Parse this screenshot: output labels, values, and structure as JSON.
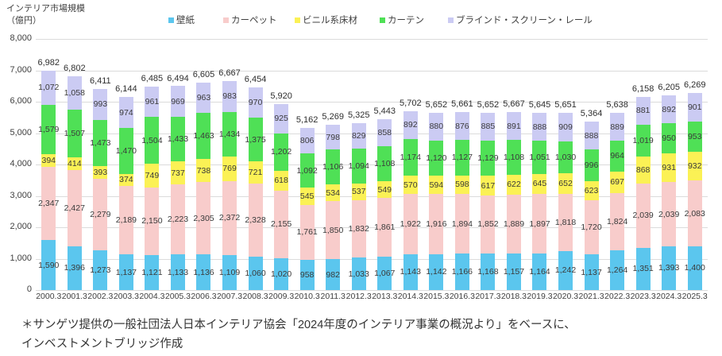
{
  "title": {
    "line1": "インテリア市場規模",
    "line2": "（億円）"
  },
  "footer": {
    "line1": "＊サンゲツ提供の一般社団法人日本インテリア協会「2024年度のインテリア事業の概況より」をベースに、",
    "line2": "インベストメントブリッジ作成"
  },
  "colors": {
    "wallpaper": "#5bc6ee",
    "carpet": "#f8cccb",
    "vinyl_flooring": "#fbf155",
    "curtain": "#4fe056",
    "blind_screen_rail": "#cbcbf3",
    "gridline": "#dbdbdb",
    "text": "#404040"
  },
  "chart_data": {
    "type": "bar",
    "stacked": true,
    "title": "インテリア市場規模（億円）",
    "xlabel": "",
    "ylabel": "",
    "ylim": [
      0,
      8000
    ],
    "ytick_step": 1000,
    "grid": true,
    "legend_position": "top",
    "categories": [
      "2000.3",
      "2001.3",
      "2002.3",
      "2003.3",
      "2004.3",
      "2005.3",
      "2006.3",
      "2007.3",
      "2008.3",
      "2009.3",
      "2010.3",
      "2011.3",
      "2012.3",
      "2013.3",
      "2014.3",
      "2015.3",
      "2016.3",
      "2017.3",
      "2018.3",
      "2019.3",
      "2020.3",
      "2021.3",
      "2022.3",
      "2023.3",
      "2024.3",
      "2025.3"
    ],
    "series": [
      {
        "name": "壁紙",
        "key": "wallpaper",
        "color": "#5bc6ee",
        "values": [
          1590,
          1396,
          1273,
          1137,
          1121,
          1133,
          1136,
          1109,
          1060,
          1020,
          958,
          982,
          1033,
          1067,
          1143,
          1142,
          1166,
          1168,
          1157,
          1164,
          1242,
          1137,
          1264,
          1351,
          1393,
          1400
        ]
      },
      {
        "name": "カーペット",
        "key": "carpet",
        "color": "#f8cccb",
        "values": [
          2347,
          2427,
          2279,
          2189,
          2150,
          2223,
          2305,
          2372,
          2328,
          2155,
          1761,
          1850,
          1832,
          1861,
          1922,
          1916,
          1894,
          1852,
          1889,
          1897,
          1818,
          1720,
          1824,
          2039,
          2039,
          2083
        ]
      },
      {
        "name": "ビニル系床材",
        "key": "vinyl-flooring",
        "color": "#fbf155",
        "values": [
          394,
          414,
          393,
          374,
          749,
          737,
          738,
          769,
          721,
          618,
          545,
          534,
          537,
          549,
          570,
          594,
          598,
          617,
          622,
          645,
          652,
          623,
          697,
          868,
          931,
          932
        ]
      },
      {
        "name": "カーテン",
        "key": "curtain",
        "color": "#4fe056",
        "values": [
          1579,
          1507,
          1473,
          1470,
          1504,
          1433,
          1463,
          1434,
          1375,
          1202,
          1092,
          1106,
          1094,
          1108,
          1174,
          1120,
          1127,
          1129,
          1108,
          1051,
          1030,
          996,
          964,
          1019,
          950,
          953
        ]
      },
      {
        "name": "ブラインド・スクリーン・レール",
        "key": "blind-screen-rail",
        "color": "#cbcbf3",
        "values": [
          1072,
          1058,
          993,
          974,
          961,
          969,
          963,
          983,
          970,
          925,
          806,
          798,
          829,
          858,
          892,
          880,
          876,
          885,
          891,
          888,
          909,
          888,
          889,
          881,
          892,
          901
        ]
      }
    ],
    "totals": [
      6982,
      6802,
      6411,
      6144,
      6485,
      6494,
      6605,
      6667,
      6454,
      5920,
      5162,
      5269,
      5325,
      5443,
      5702,
      5652,
      5661,
      5652,
      5667,
      5645,
      5651,
      5364,
      5638,
      6158,
      6205,
      6269
    ]
  }
}
